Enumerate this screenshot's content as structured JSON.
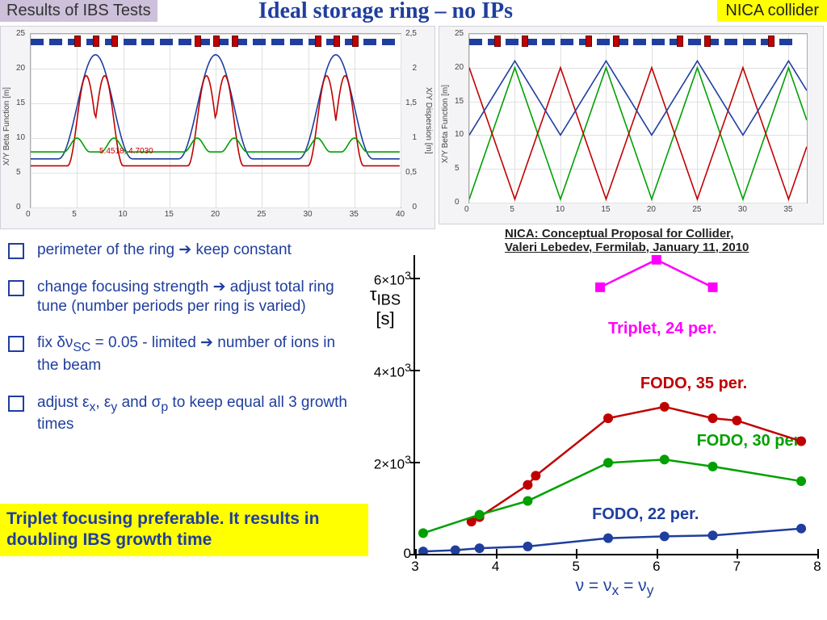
{
  "header": {
    "results_label": "Results of IBS Tests",
    "main_title": "Ideal storage ring – no IPs",
    "nica_label": "NICA collider"
  },
  "colors": {
    "title_blue": "#1f3e9e",
    "results_bg": "#ccc0da",
    "nica_bg": "#ffff00",
    "chart_panel_bg": "#f4f4f7",
    "plot_bg": "#ffffff",
    "grid": "#e0e0e0",
    "series_blue": "#1f3e9e",
    "series_red": "#c00000",
    "series_green": "#00a000",
    "series_magenta": "#ff00ff",
    "conclusion_bg": "#ffff00"
  },
  "beta_chart_1": {
    "type": "line",
    "y_label_left": "X/Y Beta Function [m]",
    "y_label_right": "X/Y Dispersion [m]",
    "xlim": [
      0,
      40
    ],
    "xtick_step": 5,
    "ylim_left": [
      0,
      25
    ],
    "ytick_left_step": 5,
    "ylim_right": [
      0,
      2.5
    ],
    "ytick_right_step": 0.5,
    "inner_note": "5.4518, 4.7030",
    "lattice_segments": 40,
    "series": {
      "blue": {
        "color": "#1f3e9e",
        "period": 12.5,
        "base": 7,
        "peak": 22,
        "width": 4
      },
      "red": {
        "color": "#c00000",
        "period": 12.5,
        "base": 6,
        "peak": 19,
        "n": 2,
        "width": 2
      },
      "green": {
        "color": "#00a000",
        "period": 12.5,
        "base": 8,
        "peak": 10,
        "n": 2,
        "width": 1.4
      }
    }
  },
  "beta_chart_2": {
    "type": "line",
    "y_label_left": "X/Y Beta Function [m]",
    "xlim": [
      0,
      37
    ],
    "xtick_step": 5,
    "ylim": [
      0,
      25
    ],
    "ytick_step": 5,
    "lattice_segments": 36,
    "series": {
      "blue": {
        "color": "#1f3e9e",
        "period": 10,
        "phase": 0.0,
        "lo": 10,
        "hi": 21
      },
      "red": {
        "color": "#c00000",
        "period": 10,
        "phase": 0.5,
        "lo": 0.5,
        "hi": 20
      },
      "green": {
        "color": "#00a000",
        "period": 10,
        "phase": 0.0,
        "lo": 0.5,
        "hi": 20
      }
    }
  },
  "bullets": [
    "perimeter of the ring ➔ keep constant",
    "change focusing strength ➔ adjust total ring  tune (number periods per ring is varied)",
    "fix  δν<sub>SC</sub>  = 0.05 - limited ➔ number of ions in the beam",
    "adjust ε<sub>x</sub>, ε<sub>y</sub> and σ<sub>p</sub> to keep equal all 3 growth times"
  ],
  "conclusion": "Triplet focusing preferable. It results in doubling IBS growth time",
  "ibs": {
    "caption": "NICA: Conceptual Proposal for Collider, Valeri Lebedev, Fermilab, January 11, 2010",
    "y_label": "τ<sub>IBS</sub><br>[s]",
    "x_label": "ν = ν<sub>x</sub> = ν<sub>y</sub>",
    "xlim": [
      3,
      8
    ],
    "xtick_step": 1,
    "ylim": [
      0,
      6500
    ],
    "ytick_values": [
      0,
      2000,
      4000,
      6000
    ],
    "ytick_labels": [
      "0",
      "2×10³",
      "4×10³",
      "6×10³"
    ],
    "series": [
      {
        "name": "Triplet, 24 per.",
        "color": "#ff00ff",
        "marker": "square",
        "label_xy": [
          5.4,
          5100
        ],
        "points": [
          [
            5.3,
            5800
          ],
          [
            6.0,
            6400
          ],
          [
            6.7,
            5800
          ]
        ]
      },
      {
        "name": "FODO, 35 per.",
        "color": "#c00000",
        "marker": "circle",
        "label_xy": [
          5.8,
          3900
        ],
        "points": [
          [
            3.7,
            700
          ],
          [
            3.8,
            800
          ],
          [
            4.4,
            1500
          ],
          [
            4.5,
            1700
          ],
          [
            5.4,
            2950
          ],
          [
            6.1,
            3200
          ],
          [
            6.7,
            2950
          ],
          [
            7.0,
            2900
          ],
          [
            7.8,
            2450
          ]
        ]
      },
      {
        "name": "FODO, 30 per.",
        "color": "#00a000",
        "marker": "circle",
        "label_xy": [
          6.5,
          2650
        ],
        "points": [
          [
            3.1,
            450
          ],
          [
            3.8,
            850
          ],
          [
            4.4,
            1150
          ],
          [
            5.4,
            1980
          ],
          [
            6.1,
            2050
          ],
          [
            6.7,
            1900
          ],
          [
            7.8,
            1580
          ]
        ]
      },
      {
        "name": "FODO, 22 per.",
        "color": "#1f3e9e",
        "marker": "circle",
        "label_xy": [
          5.2,
          1050
        ],
        "points": [
          [
            3.1,
            50
          ],
          [
            3.5,
            80
          ],
          [
            3.8,
            120
          ],
          [
            4.4,
            160
          ],
          [
            5.4,
            340
          ],
          [
            6.1,
            380
          ],
          [
            6.7,
            400
          ],
          [
            7.8,
            550
          ]
        ]
      }
    ]
  }
}
